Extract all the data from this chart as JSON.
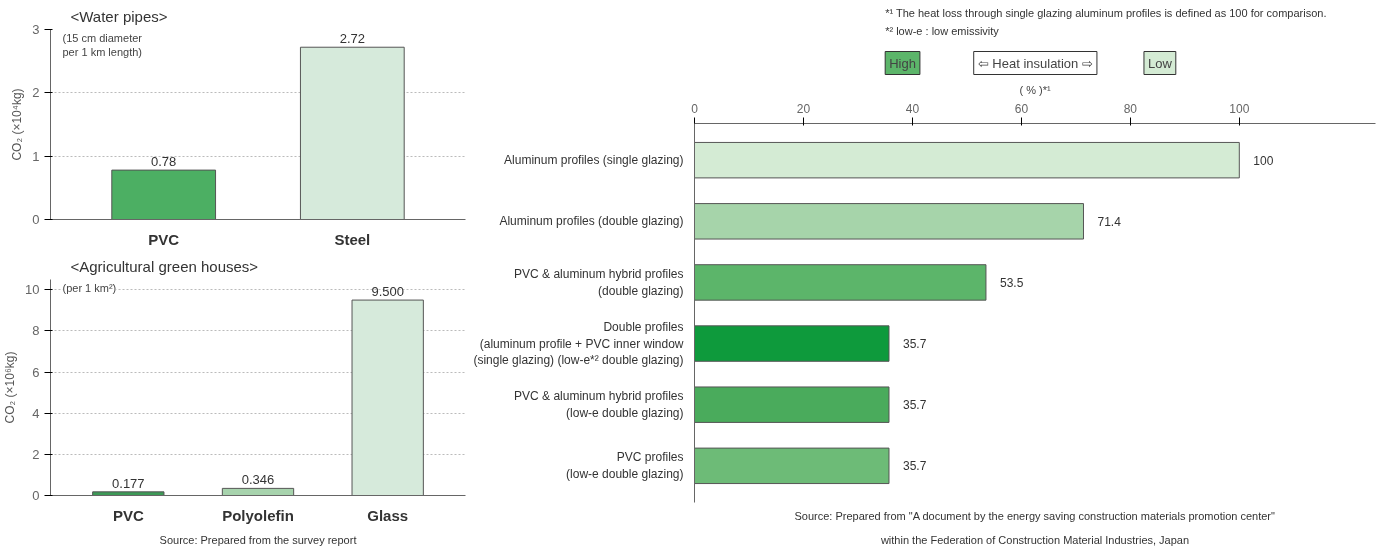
{
  "chart_data": [
    {
      "type": "bar",
      "title": "<Water pipes>",
      "subtitle": "(15 cm diameter\nper 1 km length)",
      "ylabel": "CO₂ (×10⁴kg)",
      "categories": [
        "PVC",
        "Steel"
      ],
      "values": [
        0.78,
        2.72
      ],
      "colors": [
        "#4caf63",
        "#d6eadb"
      ],
      "value_labels": [
        "0.78",
        "2.72"
      ],
      "ylim": [
        0,
        3
      ],
      "yticks": [
        0,
        1,
        2,
        3
      ],
      "grid": "y"
    },
    {
      "type": "bar",
      "title": "<Agricultural green houses>",
      "subtitle": "(per 1 km²)",
      "ylabel": "CO₂ (×10⁶kg)",
      "categories": [
        "PVC",
        "Polyolefin",
        "Glass"
      ],
      "values": [
        0.177,
        0.346,
        9.5
      ],
      "colors": [
        "#3d9a57",
        "#a7d3ad",
        "#d6eadb"
      ],
      "value_labels": [
        "0.177",
        "0.346",
        "9.500"
      ],
      "ylim": [
        0,
        10.5
      ],
      "yticks": [
        0,
        2,
        4,
        6,
        8,
        10
      ],
      "grid": "y",
      "annotations": [
        "Source: Prepared from the survey report"
      ]
    },
    {
      "type": "bar",
      "orientation": "horizontal",
      "xlabel": "( % )*¹",
      "categories": [
        "Aluminum profiles (single glazing)",
        "Aluminum profiles (double glazing)",
        "PVC & aluminum hybrid profiles\n(double glazing)",
        "Double profiles\n(aluminum profile + PVC inner window\n(single glazing) (low-e*² double glazing)",
        "PVC & aluminum hybrid profiles\n(low-e double glazing)",
        "PVC profiles\n(low-e double glazing)"
      ],
      "values": [
        100,
        71.4,
        53.5,
        35.7,
        35.7,
        35.7
      ],
      "colors": [
        "#d4ebd4",
        "#a6d4aa",
        "#5cb56a",
        "#0e9a3c",
        "#4aab5c",
        "#6dbb77"
      ],
      "data_labels": true,
      "xlim": [
        0,
        125
      ],
      "xticks": [
        0,
        20,
        40,
        60,
        80,
        100
      ],
      "grid": false,
      "annotations": [
        "*¹ The heat loss through single glazing aluminum profiles is defined as 100 for comparison.",
        "*² low-e : low emissivity",
        "High",
        "⇦ Heat insulation ⇨",
        "Low",
        "Source: Prepared from \"A document by the energy saving construction materials promotion center\"\nwithin the Federation of Construction Material Industries, Japan"
      ]
    }
  ]
}
